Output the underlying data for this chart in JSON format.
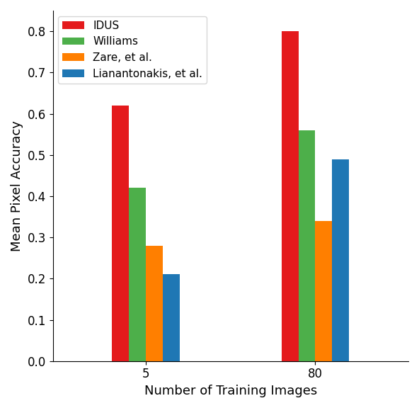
{
  "categories": [
    "5",
    "80"
  ],
  "series": [
    {
      "label": "IDUS",
      "color": "#e41a1c",
      "values": [
        0.62,
        0.8
      ]
    },
    {
      "label": "Williams",
      "color": "#4daf4a",
      "values": [
        0.42,
        0.56
      ]
    },
    {
      "label": "Zare, et al.",
      "color": "#ff7f00",
      "values": [
        0.28,
        0.34
      ]
    },
    {
      "label": "Lianantonakis, et al.",
      "color": "#1f77b4",
      "values": [
        0.21,
        0.49
      ]
    }
  ],
  "xlabel": "Number of Training Images",
  "ylabel": "Mean Pixel Accuracy",
  "ylim": [
    0.0,
    0.85
  ],
  "yticks": [
    0.0,
    0.1,
    0.2,
    0.3,
    0.4,
    0.5,
    0.6,
    0.7,
    0.8
  ],
  "bar_width": 0.2,
  "group_positions": [
    1.0,
    3.0
  ],
  "legend_loc": "upper left",
  "legend_fontsize": 11,
  "axis_label_fontsize": 13,
  "tick_fontsize": 12,
  "figsize": [
    5.92,
    5.76
  ],
  "dpi": 100
}
